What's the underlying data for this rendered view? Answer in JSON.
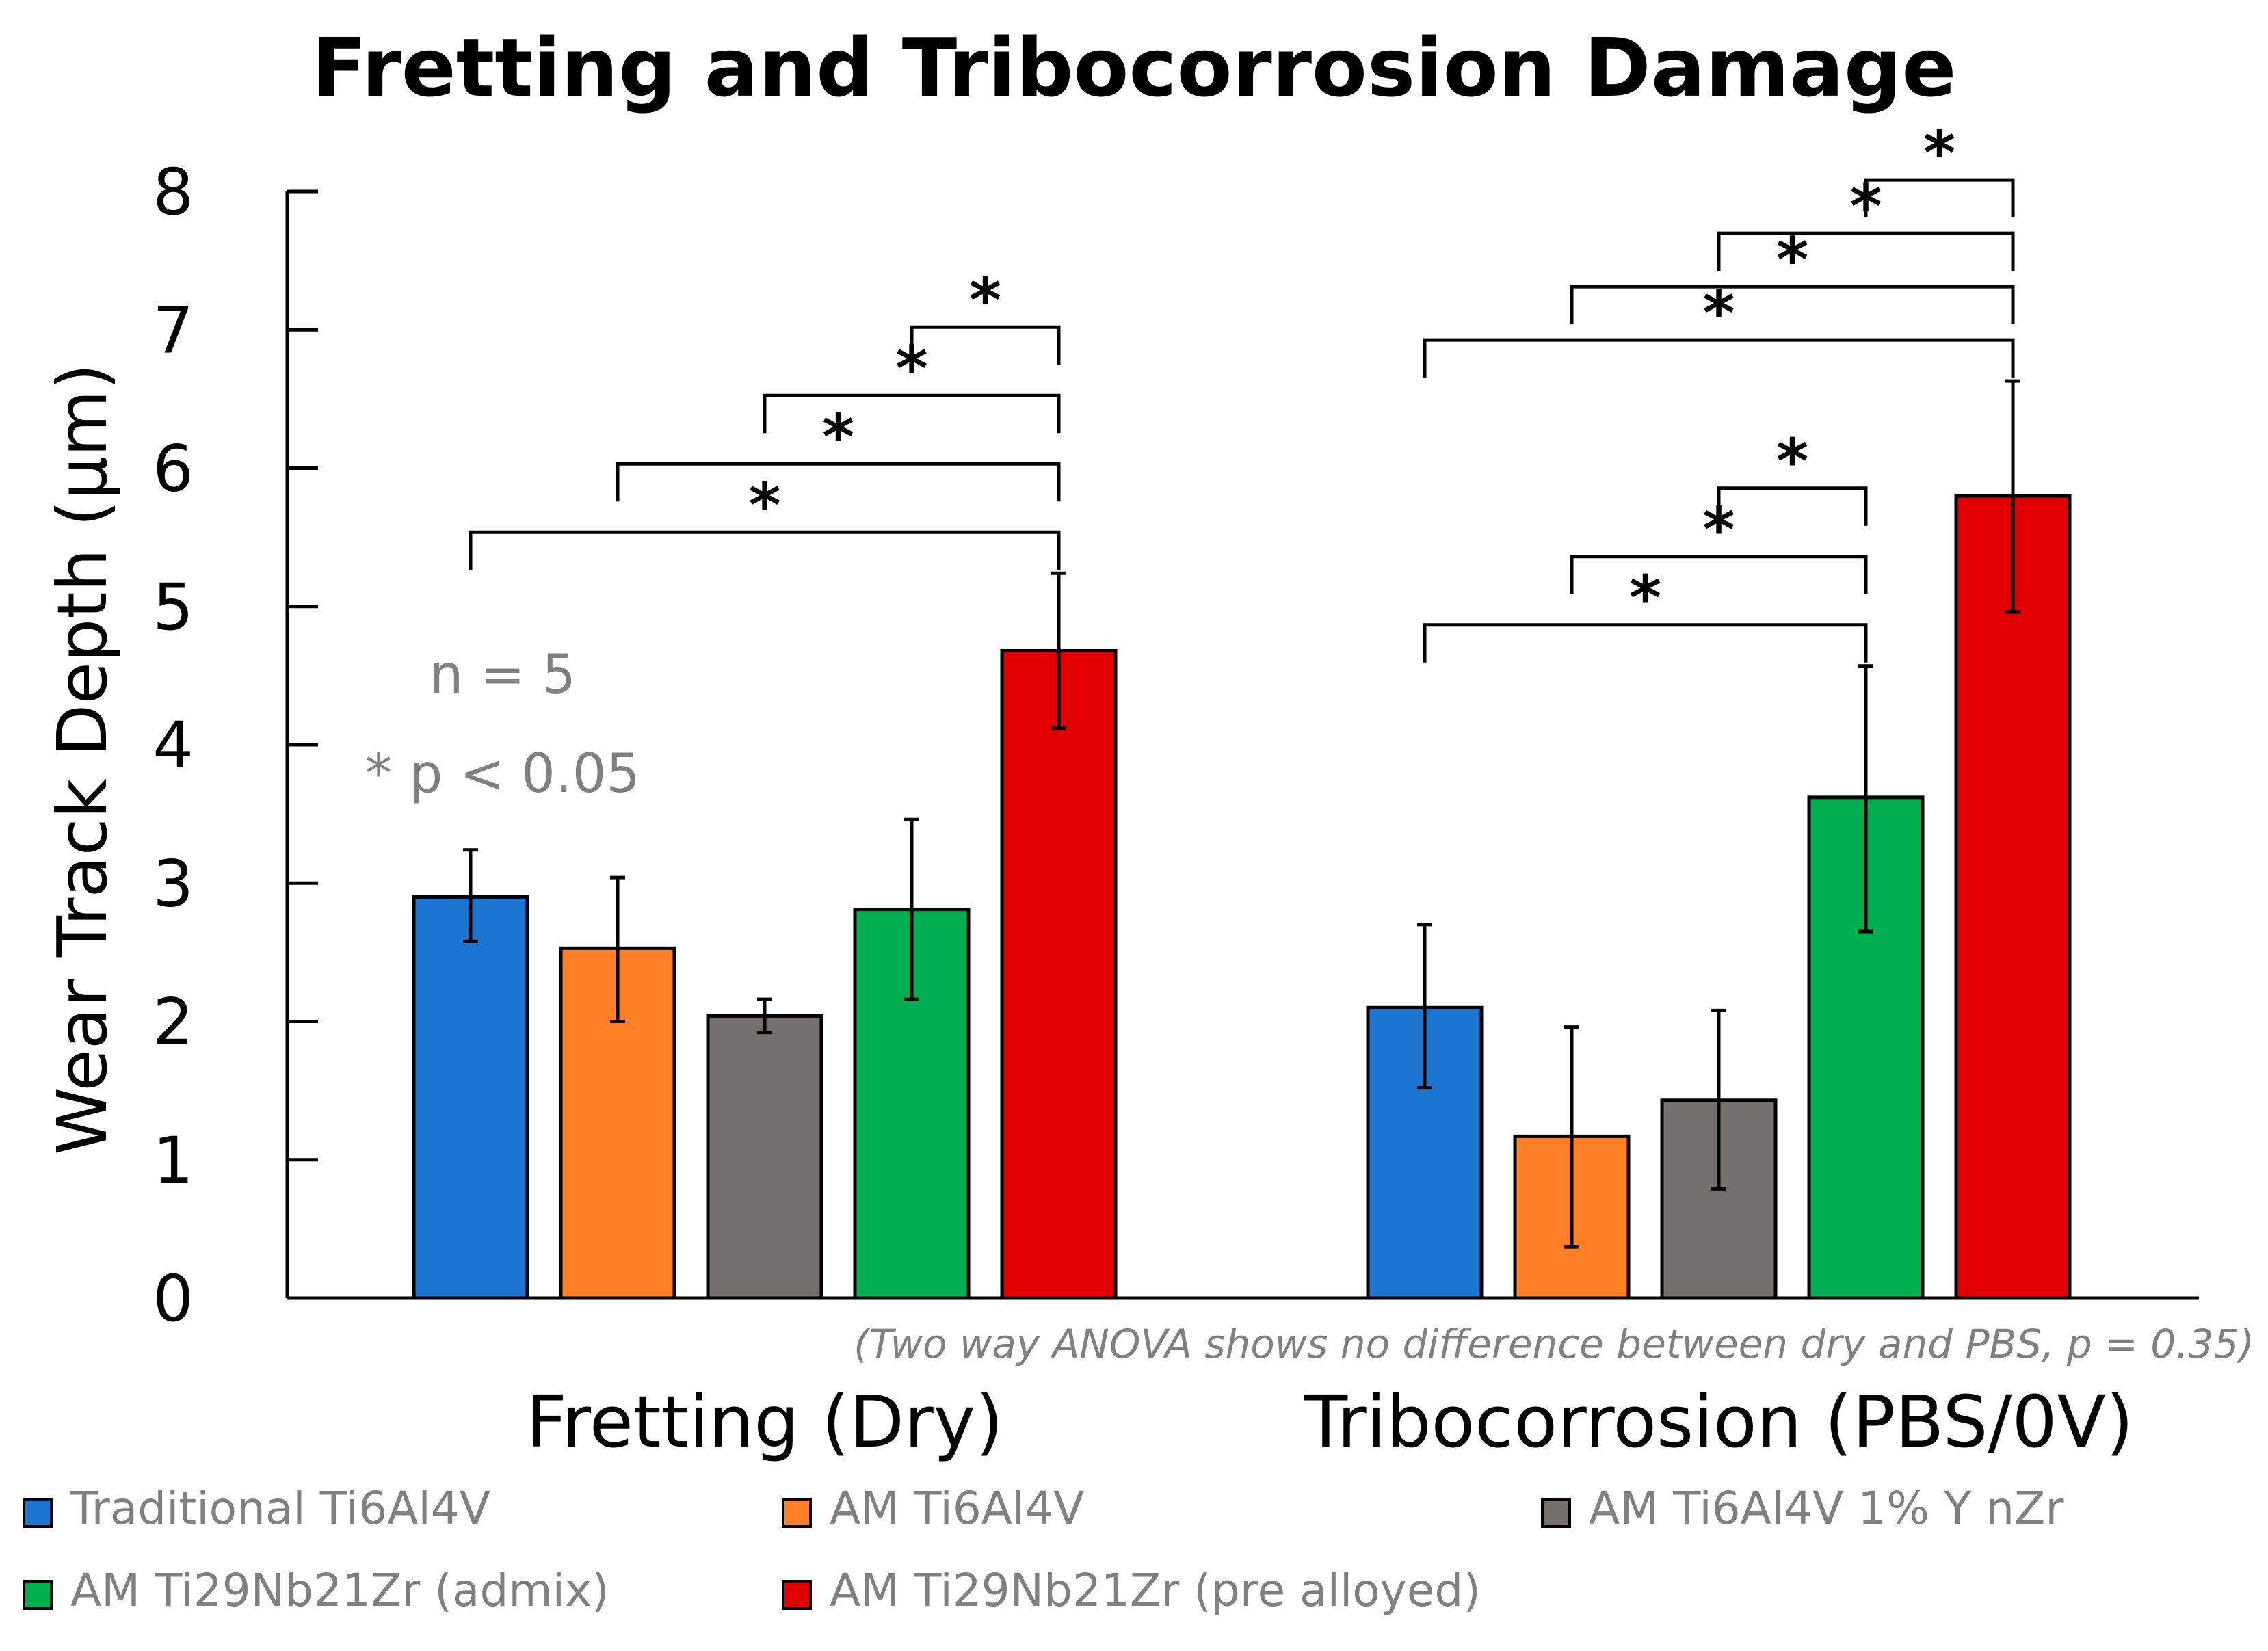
{
  "chart_data": {
    "type": "bar",
    "title": "Fretting and Tribocorrosion Damage",
    "ylabel": "Wear Track Depth (µm)",
    "xlabel": "",
    "ylim": [
      0,
      8
    ],
    "yticks": [
      0,
      1,
      2,
      3,
      4,
      5,
      6,
      7,
      8
    ],
    "categories": [
      "Fretting (Dry)",
      "Tribocorrosion (PBS/0V)"
    ],
    "series": [
      {
        "name": "Traditional Ti6Al4V",
        "color": "#1b75d0",
        "values": [
          2.9,
          2.1
        ],
        "error_low": [
          2.58,
          1.52
        ],
        "error_high": [
          3.24,
          2.7
        ]
      },
      {
        "name": "AM Ti6Al4V",
        "color": "#ff7f27",
        "values": [
          2.53,
          1.17
        ],
        "error_low": [
          2.0,
          0.37
        ],
        "error_high": [
          3.04,
          1.96
        ]
      },
      {
        "name": "AM Ti6Al4V 1% Y nZr",
        "color": "#76706c",
        "values": [
          2.04,
          1.43
        ],
        "error_low": [
          1.92,
          0.79
        ],
        "error_high": [
          2.16,
          2.08
        ]
      },
      {
        "name": "AM Ti29Nb21Zr (admix)",
        "color": "#00b050",
        "values": [
          2.81,
          3.62
        ],
        "error_low": [
          2.16,
          2.65
        ],
        "error_high": [
          3.46,
          4.57
        ]
      },
      {
        "name": "AM Ti29Nb21Zr (pre alloyed)",
        "color": "#e00000",
        "values": [
          4.68,
          5.8
        ],
        "error_low": [
          4.12,
          4.96
        ],
        "error_high": [
          5.24,
          6.63
        ]
      }
    ],
    "significance": [
      {
        "group": 0,
        "from": 0,
        "to": 4,
        "label": "*"
      },
      {
        "group": 0,
        "from": 1,
        "to": 4,
        "label": "*"
      },
      {
        "group": 0,
        "from": 2,
        "to": 4,
        "label": "*"
      },
      {
        "group": 0,
        "from": 3,
        "to": 4,
        "label": "*"
      },
      {
        "group": 1,
        "from": 0,
        "to": 4,
        "label": "*"
      },
      {
        "group": 1,
        "from": 1,
        "to": 4,
        "label": "*"
      },
      {
        "group": 1,
        "from": 2,
        "to": 4,
        "label": "*"
      },
      {
        "group": 1,
        "from": 3,
        "to": 4,
        "label": "*"
      },
      {
        "group": 1,
        "from": 0,
        "to": 3,
        "label": "*"
      },
      {
        "group": 1,
        "from": 1,
        "to": 3,
        "label": "*"
      },
      {
        "group": 1,
        "from": 2,
        "to": 3,
        "label": "*"
      }
    ],
    "annotations": {
      "n_label": "n = 5",
      "p_label": "* p < 0.05",
      "footnote": "(Two way ANOVA shows no difference between dry and PBS, p = 0.35)"
    },
    "legend_position": "bottom",
    "grid": false
  }
}
